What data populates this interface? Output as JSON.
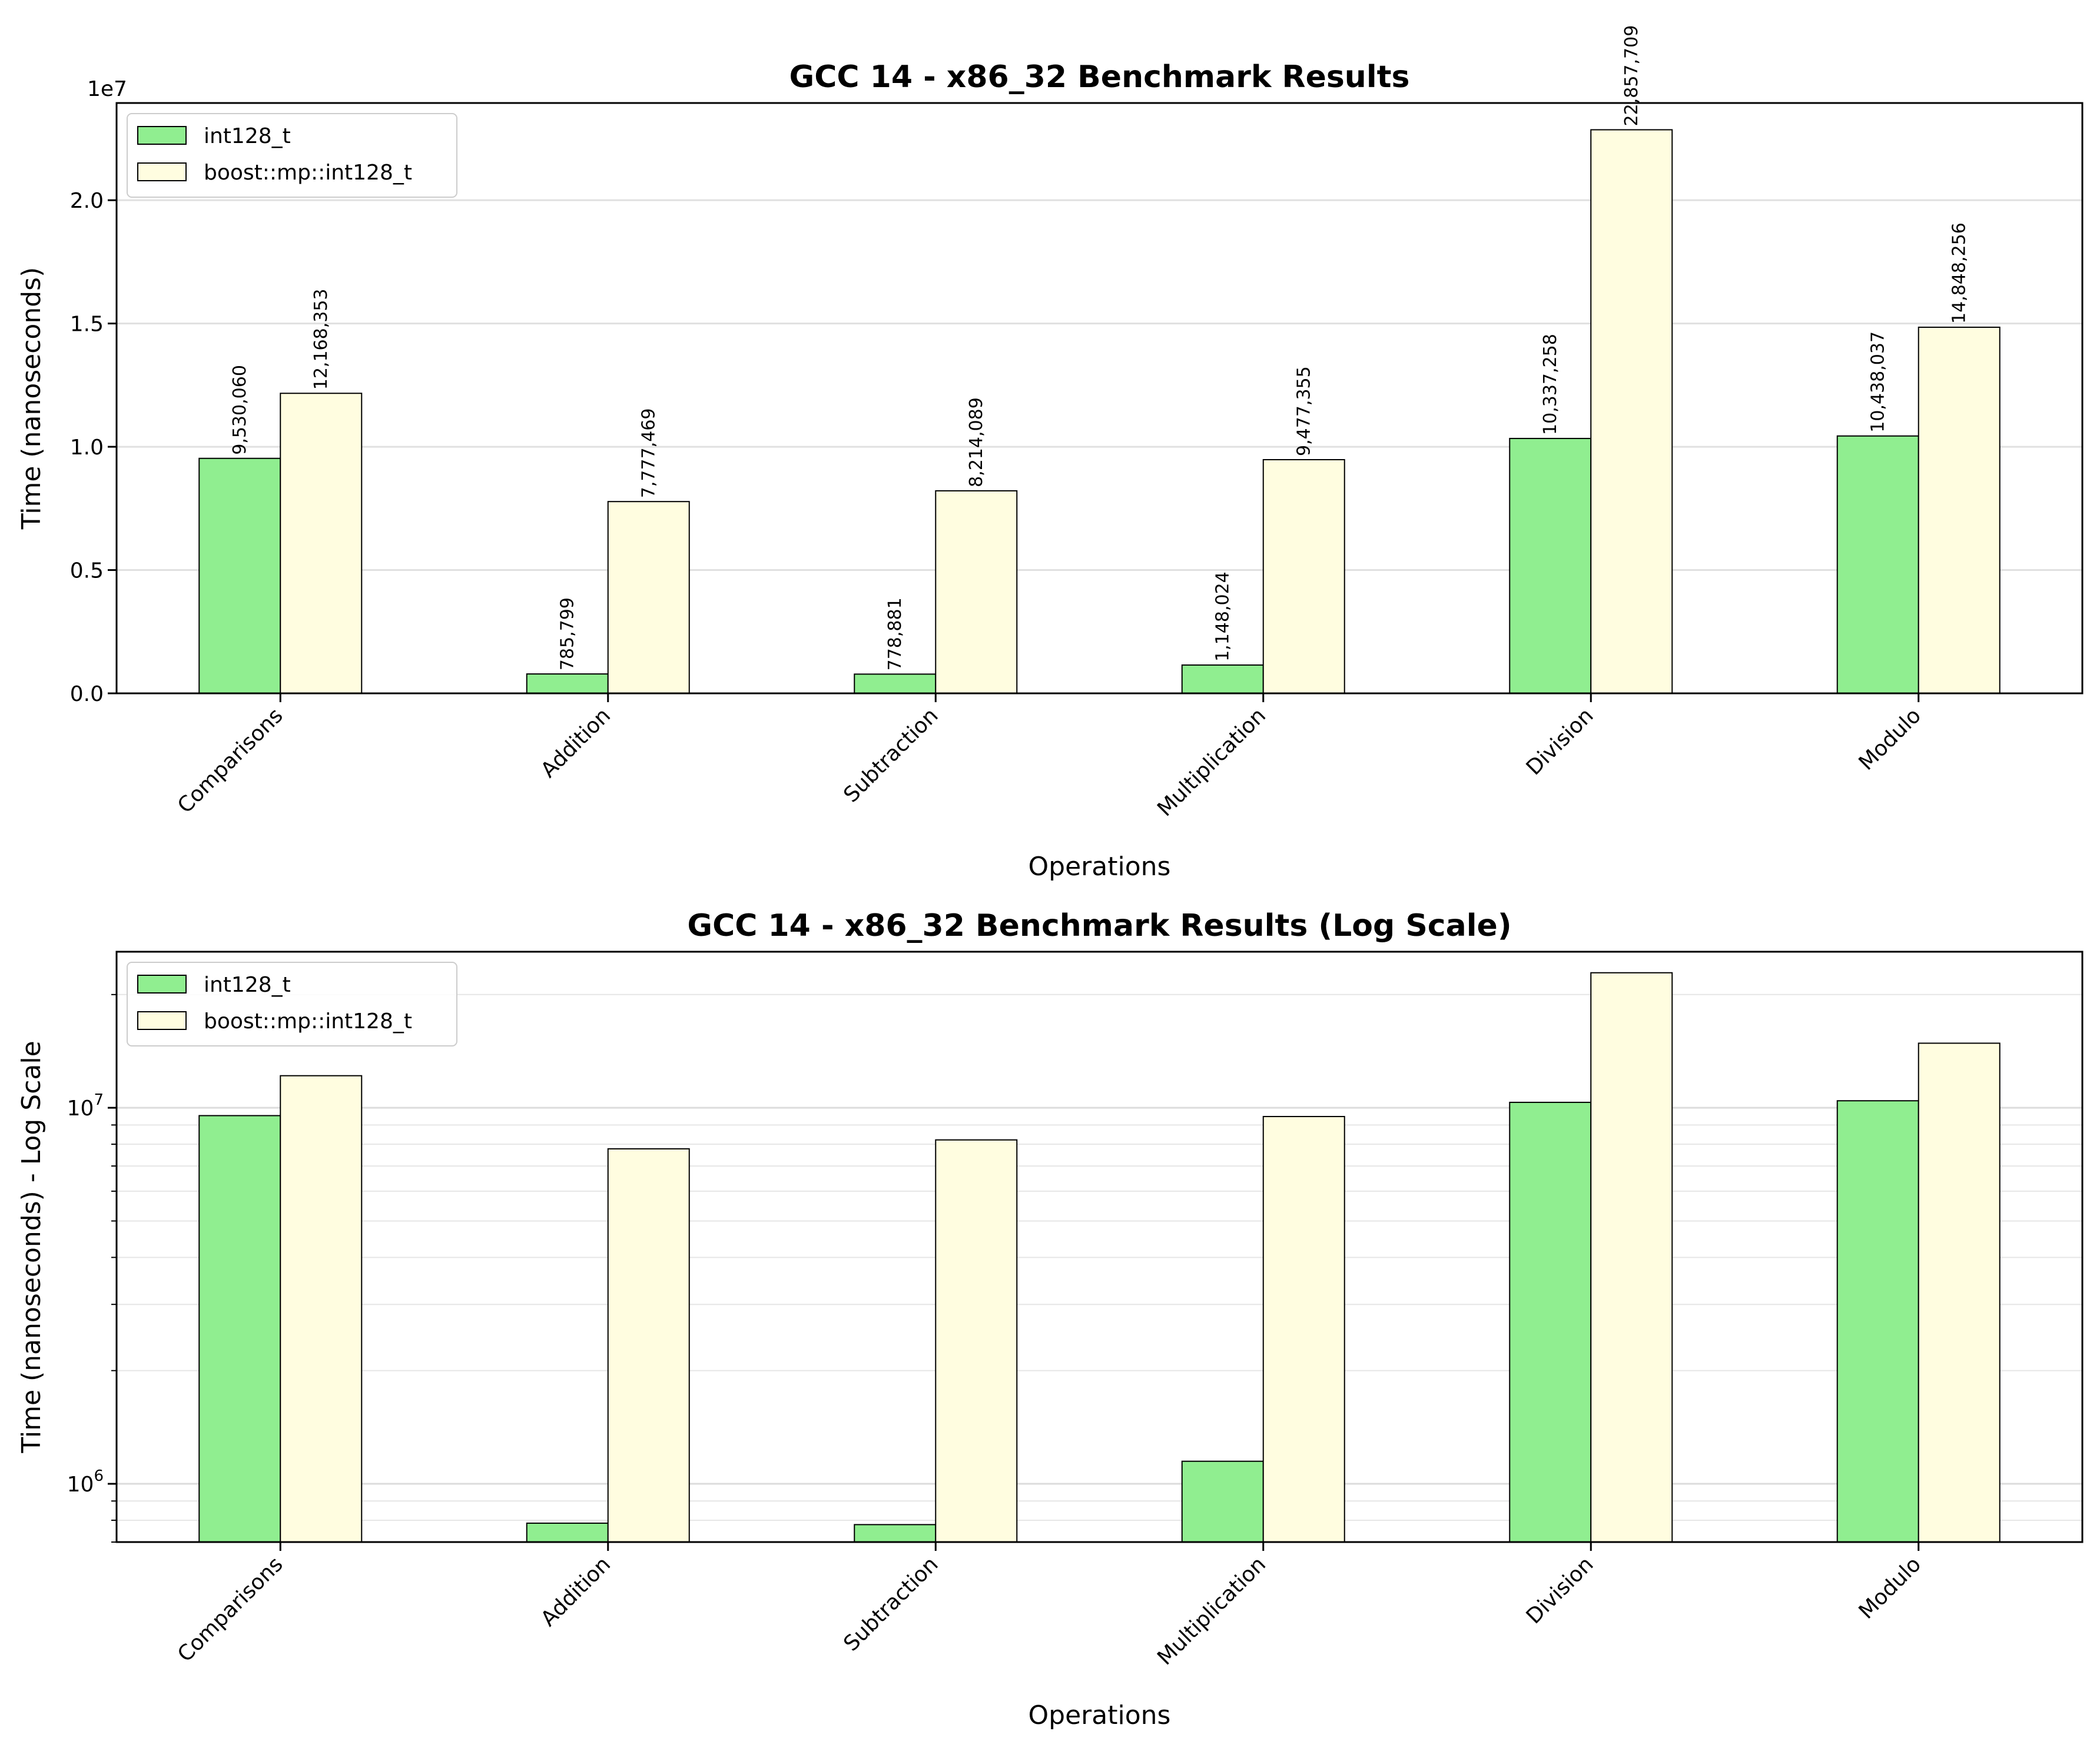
{
  "chart_data": [
    {
      "type": "bar",
      "title": "GCC 14 - x86_32 Benchmark Results",
      "xlabel": "Operations",
      "ylabel": "Time (nanoseconds)",
      "y_offset_text": "1e7",
      "y_scale": "linear",
      "ylim": [
        0,
        23942909
      ],
      "yticks": [
        0,
        5000000,
        10000000,
        15000000,
        20000000
      ],
      "ytick_labels": [
        "0.0",
        "0.5",
        "1.0",
        "1.5",
        "2.0"
      ],
      "grid": "y-major",
      "legend_position": "top-left",
      "show_value_labels": true,
      "categories": [
        "Comparisons",
        "Addition",
        "Subtraction",
        "Multiplication",
        "Division",
        "Modulo"
      ],
      "series": [
        {
          "name": "int128_t",
          "color": "#90ee90",
          "values": [
            9530060,
            785799,
            778881,
            1148024,
            10337258,
            10438037
          ]
        },
        {
          "name": "boost::mp::int128_t",
          "color": "#fffde0",
          "values": [
            12168353,
            7777469,
            8214089,
            9477355,
            22857709,
            14848256
          ]
        }
      ],
      "value_labels": [
        [
          "9,530,060",
          "785,799",
          "778,881",
          "1,148,024",
          "10,337,258",
          "10,438,037"
        ],
        [
          "12,168,353",
          "7,777,469",
          "8,214,089",
          "9,477,355",
          "22,857,709",
          "14,848,256"
        ]
      ]
    },
    {
      "type": "bar",
      "title": "GCC 14 - x86_32 Benchmark Results (Log Scale)",
      "xlabel": "Operations",
      "ylabel": "Time (nanoseconds) - Log Scale",
      "y_scale": "log",
      "ylim": [
        700000,
        26000000
      ],
      "yticks": [
        1000000,
        10000000
      ],
      "ytick_labels": [
        [
          "10",
          "6"
        ],
        [
          "10",
          "7"
        ]
      ],
      "grid": "y-major-and-minor",
      "legend_position": "top-left",
      "show_value_labels": false,
      "categories": [
        "Comparisons",
        "Addition",
        "Subtraction",
        "Multiplication",
        "Division",
        "Modulo"
      ],
      "series": [
        {
          "name": "int128_t",
          "color": "#90ee90",
          "values": [
            9530060,
            785799,
            778881,
            1148024,
            10337258,
            10438037
          ]
        },
        {
          "name": "boost::mp::int128_t",
          "color": "#fffde0",
          "values": [
            12168353,
            7777469,
            8214089,
            9477355,
            22857709,
            14848256
          ]
        }
      ]
    }
  ]
}
